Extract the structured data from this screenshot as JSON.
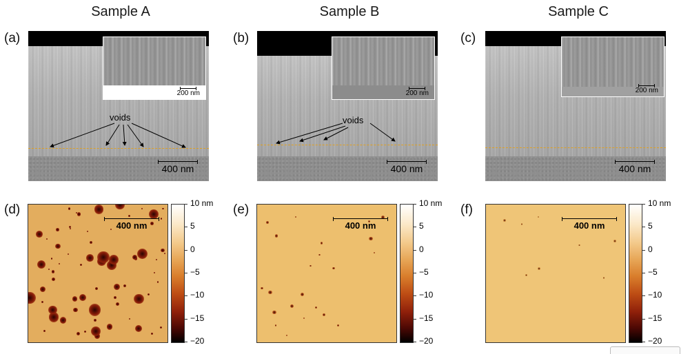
{
  "titles": [
    "Sample A",
    "Sample B",
    "Sample C"
  ],
  "panel_labels": [
    "(a)",
    "(b)",
    "(c)",
    "(d)",
    "(e)",
    "(f)"
  ],
  "sem": {
    "scale_main": "400 nm",
    "scale_inset": "200 nm",
    "voids_label": "voids"
  },
  "afm": {
    "scale": "400 nm"
  },
  "colorbar": {
    "ticks": [
      "10 nm",
      "5",
      "0",
      "−5",
      "−10",
      "−15",
      "−20"
    ],
    "range_nm": [
      -20,
      10
    ]
  },
  "colors": {
    "interface_dash": "#e0a020",
    "afm_base": "#e8b766",
    "afm_pit": "#8a1d08"
  }
}
